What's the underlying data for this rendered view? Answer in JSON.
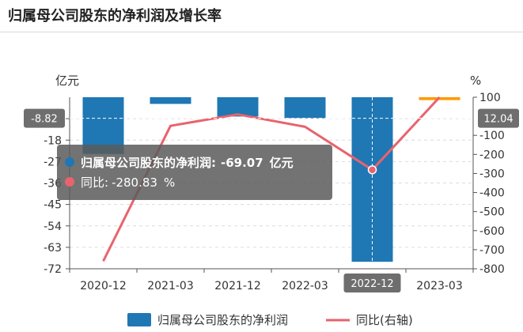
{
  "page": {
    "title": "归属母公司股东的净利润及增长率"
  },
  "chart_data": {
    "type": "bar+line",
    "categories": [
      "2020-12",
      "2021-03",
      "2021-12",
      "2022-03",
      "2022-12",
      "2023-03"
    ],
    "series": [
      {
        "name": "归属母公司股东的净利润",
        "type": "bar",
        "axis": "left",
        "values": [
          -23.8,
          -2.8,
          -8.1,
          -8.8,
          -69.07,
          -1.2
        ],
        "color": "#1f77b4"
      },
      {
        "name": "同比(右轴)",
        "type": "line",
        "axis": "right",
        "values": [
          -760,
          -50,
          10,
          -55,
          -280.83,
          100
        ],
        "color": "#e8636d"
      }
    ],
    "highlight_bar_color": "#ff9900",
    "y_left": {
      "unit": "亿元",
      "ticks": [
        -72,
        -63,
        -54,
        -45,
        -36,
        -27,
        -18,
        -9
      ],
      "ylim": [
        -72,
        0
      ]
    },
    "y_right": {
      "unit": "%",
      "ticks": [
        100,
        -100,
        -200,
        -300,
        -400,
        -500,
        -600,
        -700,
        -800
      ],
      "ylim": [
        -800,
        100
      ]
    },
    "crosshair": {
      "category": "2022-12",
      "x_label": "2022-12",
      "y_left_label": "-8.82",
      "y_right_label": "12.04",
      "y_left_value": -8.82
    },
    "tooltip": {
      "bar_label": "归属母公司股东的净利润:",
      "bar_value": "-69.07",
      "bar_unit": "亿元",
      "line_label": "同比:",
      "line_value": "-280.83",
      "line_unit": "%"
    },
    "grid": "dashed-horizontal",
    "legend_position": "bottom-center"
  }
}
